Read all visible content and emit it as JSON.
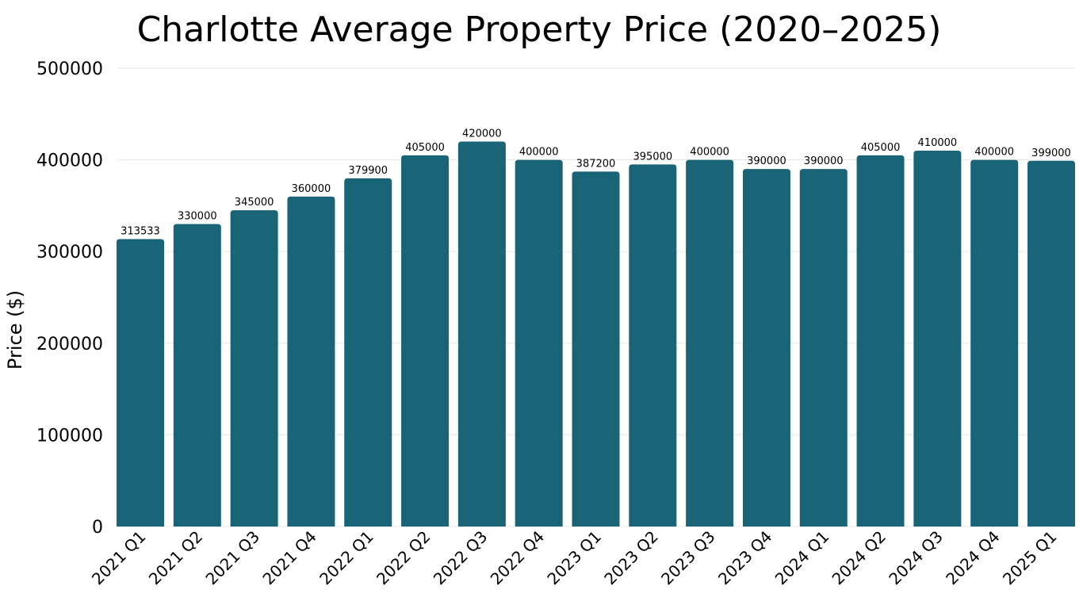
{
  "chart_data": {
    "type": "bar",
    "title": "Charlotte Average Property Price (2020–2025)",
    "xlabel": "",
    "ylabel": "Price ($)",
    "ylim": [
      0,
      500000
    ],
    "yticks": [
      0,
      100000,
      200000,
      300000,
      400000,
      500000
    ],
    "grid": true,
    "bar_color": "#1a6478",
    "categories": [
      "2021 Q1",
      "2021 Q2",
      "2021 Q3",
      "2021 Q4",
      "2022 Q1",
      "2022 Q2",
      "2022 Q3",
      "2022 Q4",
      "2023 Q1",
      "2023 Q2",
      "2023 Q3",
      "2023 Q4",
      "2024 Q1",
      "2024 Q2",
      "2024 Q3",
      "2024 Q4",
      "2025 Q1"
    ],
    "values": [
      313533,
      330000,
      345000,
      360000,
      379900,
      405000,
      420000,
      400000,
      387200,
      395000,
      400000,
      390000,
      390000,
      405000,
      410000,
      400000,
      399000
    ]
  }
}
